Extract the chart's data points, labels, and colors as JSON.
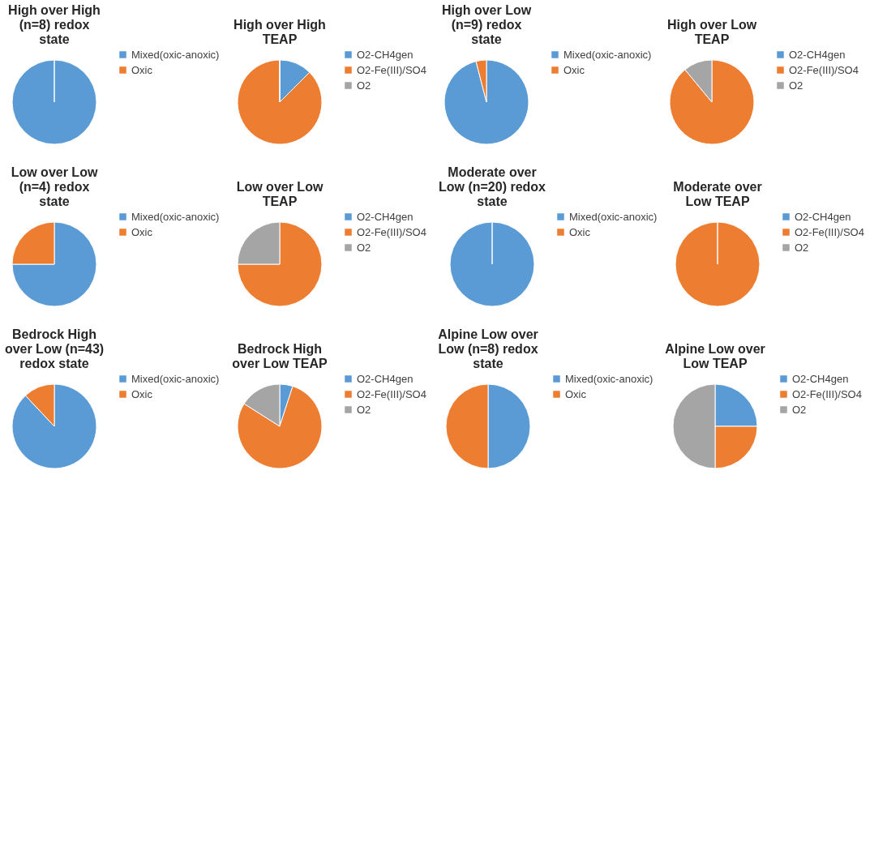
{
  "chart_data": [
    {
      "type": "pie",
      "title": "High over High (n=8) redox state",
      "categories": [
        "Mixed(oxic-anoxic)",
        "Oxic"
      ],
      "values": [
        100,
        0
      ],
      "colors": [
        "#5b9bd5",
        "#ed7d31"
      ],
      "legend": "right"
    },
    {
      "type": "pie",
      "title": "High over High TEAP",
      "categories": [
        "O2-CH4gen",
        "O2-Fe(III)/SO4",
        "O2"
      ],
      "values": [
        12.5,
        87.5,
        0
      ],
      "colors": [
        "#5b9bd5",
        "#ed7d31",
        "#a5a5a5"
      ],
      "legend": "right"
    },
    {
      "type": "pie",
      "title": "High over Low (n=9) redox state",
      "categories": [
        "Mixed(oxic-anoxic)",
        "Oxic"
      ],
      "values": [
        96,
        4
      ],
      "colors": [
        "#5b9bd5",
        "#ed7d31"
      ],
      "legend": "right"
    },
    {
      "type": "pie",
      "title": "High over Low TEAP",
      "categories": [
        "O2-CH4gen",
        "O2-Fe(III)/SO4",
        "O2"
      ],
      "values": [
        0,
        89,
        11
      ],
      "colors": [
        "#5b9bd5",
        "#ed7d31",
        "#a5a5a5"
      ],
      "legend": "right"
    },
    {
      "type": "pie",
      "title": "Low over Low (n=4) redox state",
      "categories": [
        "Mixed(oxic-anoxic)",
        "Oxic"
      ],
      "values": [
        75,
        25
      ],
      "colors": [
        "#5b9bd5",
        "#ed7d31"
      ],
      "legend": "right"
    },
    {
      "type": "pie",
      "title": "Low over Low TEAP",
      "categories": [
        "O2-CH4gen",
        "O2-Fe(III)/SO4",
        "O2"
      ],
      "values": [
        0,
        75,
        25
      ],
      "colors": [
        "#5b9bd5",
        "#ed7d31",
        "#a5a5a5"
      ],
      "legend": "right"
    },
    {
      "type": "pie",
      "title": "Moderate over Low (n=20) redox state",
      "categories": [
        "Mixed(oxic-anoxic)",
        "Oxic"
      ],
      "values": [
        100,
        0
      ],
      "colors": [
        "#5b9bd5",
        "#ed7d31"
      ],
      "legend": "right"
    },
    {
      "type": "pie",
      "title": "Moderate over Low TEAP",
      "categories": [
        "O2-CH4gen",
        "O2-Fe(III)/SO4",
        "O2"
      ],
      "values": [
        0,
        100,
        0
      ],
      "colors": [
        "#5b9bd5",
        "#ed7d31",
        "#a5a5a5"
      ],
      "legend": "right"
    },
    {
      "type": "pie",
      "title": "Bedrock High over Low (n=43) redox state",
      "categories": [
        "Mixed(oxic-anoxic)",
        "Oxic"
      ],
      "values": [
        88,
        12
      ],
      "colors": [
        "#5b9bd5",
        "#ed7d31"
      ],
      "legend": "right"
    },
    {
      "type": "pie",
      "title": "Bedrock High over Low TEAP",
      "categories": [
        "O2-CH4gen",
        "O2-Fe(III)/SO4",
        "O2"
      ],
      "values": [
        5,
        79,
        16
      ],
      "colors": [
        "#5b9bd5",
        "#ed7d31",
        "#a5a5a5"
      ],
      "legend": "right"
    },
    {
      "type": "pie",
      "title": "Alpine Low over Low (n=8) redox state",
      "categories": [
        "Mixed(oxic-anoxic)",
        "Oxic"
      ],
      "values": [
        50,
        50
      ],
      "colors": [
        "#5b9bd5",
        "#ed7d31"
      ],
      "legend": "right"
    },
    {
      "type": "pie",
      "title": "Alpine Low over Low TEAP",
      "categories": [
        "O2-CH4gen",
        "O2-Fe(III)/SO4",
        "O2"
      ],
      "values": [
        25,
        25,
        50
      ],
      "colors": [
        "#5b9bd5",
        "#ed7d31",
        "#a5a5a5"
      ],
      "legend": "right"
    }
  ]
}
